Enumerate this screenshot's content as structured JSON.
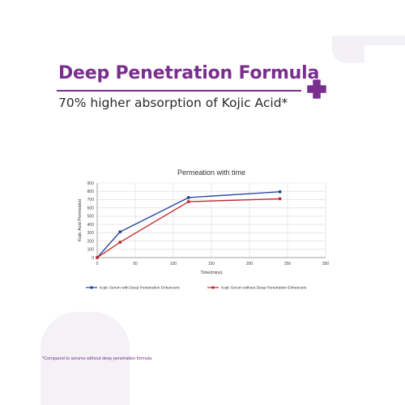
{
  "header": {
    "title": "Deep Penetration Formula",
    "subtitle": "70% higher absorption of Kojic Acid*"
  },
  "footnote": "*Compared to serums without deep penetration formula",
  "colors": {
    "brand": "#7a2e8e",
    "series_with": "#1f3c9e",
    "series_without": "#c0272d"
  },
  "icons": {
    "accent": "plus-icon"
  },
  "chart_data": {
    "type": "line",
    "title": "Permeation with time",
    "xlabel": "Time(mins)",
    "ylabel": "Kojic Acid Permeated",
    "xlim": [
      0,
      300
    ],
    "ylim": [
      0,
      900
    ],
    "xticks": [
      0,
      50,
      100,
      150,
      200,
      250,
      300
    ],
    "yticks": [
      0,
      100,
      200,
      300,
      400,
      500,
      600,
      700,
      800,
      900
    ],
    "grid": true,
    "legend_position": "bottom",
    "series": [
      {
        "name": "Kojic Serum with Deep Penetration Enhancers",
        "x": [
          0,
          30,
          120,
          240
        ],
        "y": [
          0,
          310,
          725,
          795
        ]
      },
      {
        "name": "Kojic Serum without Deep Penetration Enhancers",
        "x": [
          0,
          30,
          120,
          240
        ],
        "y": [
          0,
          185,
          675,
          710
        ]
      }
    ]
  }
}
